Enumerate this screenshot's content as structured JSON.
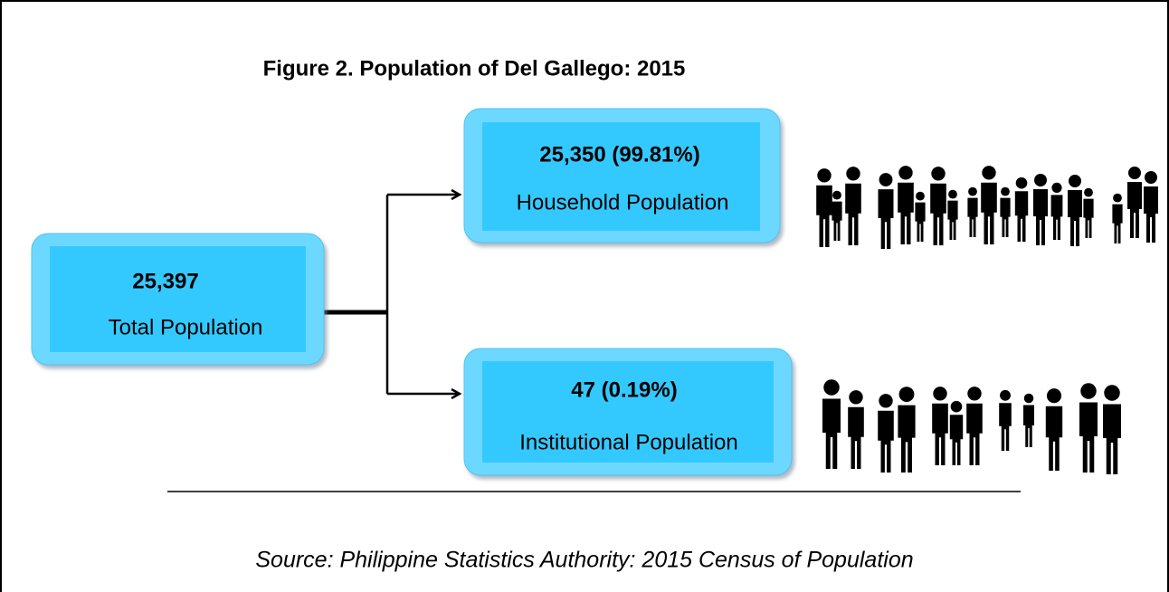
{
  "title": "Figure 2. Population of  Del Gallego: 2015",
  "nodes": [
    {
      "value": "25,397",
      "label": "Total Population"
    },
    {
      "value": "25,350 (99.81%)",
      "label": "Household  Population"
    },
    {
      "value": "47 (0.19%)",
      "label": "Institutional  Population"
    }
  ],
  "source": "Source: Philippine Statistics Authority: 2015 Census of Population"
}
